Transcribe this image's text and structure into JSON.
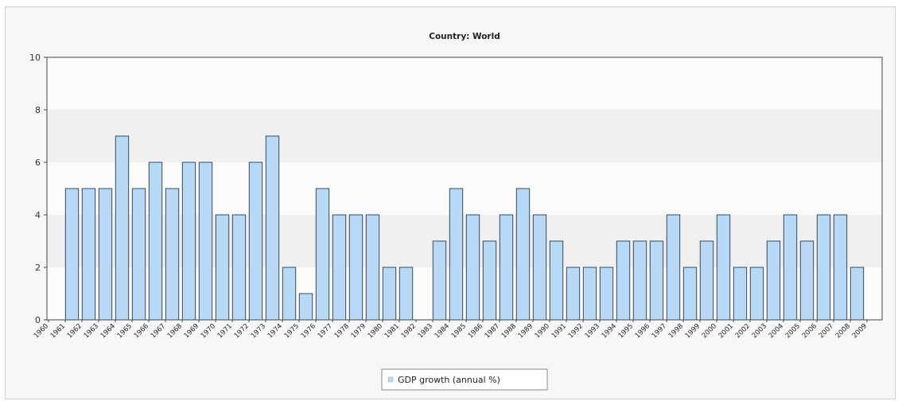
{
  "chart_data": {
    "type": "bar",
    "title": "Country: World",
    "xlabel": "",
    "ylabel": "",
    "ylim": [
      0,
      10
    ],
    "yticks": [
      0,
      2,
      4,
      6,
      8,
      10
    ],
    "grid": "horizontal bands",
    "legend_position": "bottom-center",
    "bar_color": "#b8d9f5",
    "bar_border": "#3a4a5a",
    "categories": [
      "1960",
      "1961",
      "1962",
      "1963",
      "1964",
      "1965",
      "1966",
      "1967",
      "1968",
      "1969",
      "1970",
      "1971",
      "1972",
      "1973",
      "1974",
      "1975",
      "1976",
      "1977",
      "1978",
      "1979",
      "1980",
      "1981",
      "1982",
      "1983",
      "1984",
      "1985",
      "1986",
      "1987",
      "1988",
      "1989",
      "1990",
      "1991",
      "1992",
      "1993",
      "1994",
      "1995",
      "1996",
      "1997",
      "1998",
      "1999",
      "2000",
      "2001",
      "2002",
      "2003",
      "2004",
      "2005",
      "2006",
      "2007",
      "2008",
      "2009"
    ],
    "series": [
      {
        "name": "GDP growth (annual %)",
        "values": [
          null,
          5,
          5,
          5,
          7,
          5,
          6,
          5,
          6,
          6,
          4,
          4,
          6,
          7,
          2,
          1,
          5,
          4,
          4,
          4,
          2,
          2,
          null,
          3,
          5,
          4,
          3,
          4,
          5,
          4,
          3,
          2,
          2,
          2,
          3,
          3,
          3,
          4,
          2,
          3,
          4,
          2,
          2,
          3,
          4,
          3,
          4,
          4,
          2,
          null
        ]
      }
    ]
  }
}
